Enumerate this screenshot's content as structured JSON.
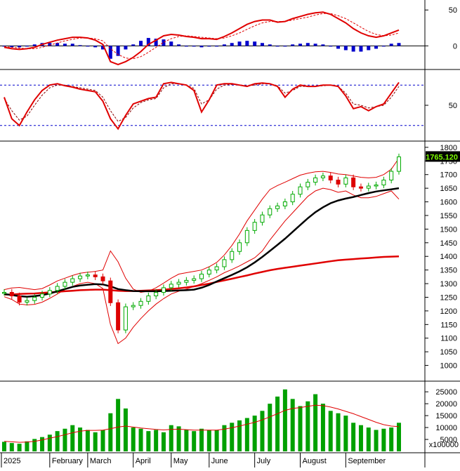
{
  "chart_data": {
    "type": "stock-dashboard",
    "months": [
      "2025",
      "February",
      "March",
      "April",
      "May",
      "June",
      "July",
      "August",
      "September"
    ],
    "macd_panel": {
      "type": "line+bar",
      "y_ticks": [
        "50",
        "0"
      ],
      "ylim": [
        -30,
        60
      ],
      "colors": {
        "macd": "#e00000",
        "signal": "#e00000",
        "histogram": "#0000cc"
      },
      "macd": [
        -2,
        -4,
        -5,
        -4,
        -2,
        2,
        5,
        8,
        10,
        12,
        12,
        11,
        8,
        2,
        -22,
        -26,
        -22,
        -16,
        -8,
        2,
        8,
        14,
        16,
        15,
        13,
        12,
        10,
        10,
        9,
        13,
        18,
        24,
        30,
        34,
        36,
        36,
        33,
        34,
        38,
        41,
        44,
        46,
        47,
        44,
        38,
        32,
        24,
        18,
        14,
        12,
        14,
        18,
        22
      ],
      "signal": [
        -1,
        -2,
        -3,
        -4,
        -4,
        -2,
        1,
        4,
        7,
        9,
        11,
        11,
        10,
        7,
        -4,
        -12,
        -17,
        -18,
        -15,
        -9,
        -2,
        5,
        10,
        13,
        14,
        13,
        12,
        11,
        10,
        11,
        14,
        18,
        23,
        28,
        32,
        34,
        34,
        34,
        36,
        38,
        40,
        43,
        45,
        45,
        42,
        38,
        32,
        26,
        20,
        16,
        14,
        15,
        18
      ],
      "histogram": [
        -1,
        -2,
        -2,
        0,
        2,
        4,
        4,
        4,
        3,
        3,
        1,
        0,
        -2,
        -5,
        -18,
        -14,
        -5,
        2,
        7,
        11,
        10,
        9,
        6,
        2,
        -1,
        -1,
        -2,
        -1,
        -1,
        2,
        4,
        6,
        7,
        6,
        4,
        2,
        -1,
        0,
        2,
        3,
        4,
        3,
        2,
        -1,
        -4,
        -6,
        -8,
        -8,
        -6,
        -4,
        0,
        3,
        4
      ]
    },
    "rsi_panel": {
      "type": "line",
      "y_ticks": [
        "50"
      ],
      "ylim": [
        0,
        100
      ],
      "reference_lines": [
        80,
        20
      ],
      "colors": {
        "rsi": "#e00000",
        "signal": "#880000",
        "reference": "#0000cc"
      },
      "rsi": [
        62,
        30,
        20,
        40,
        58,
        72,
        80,
        82,
        79,
        77,
        74,
        72,
        70,
        56,
        30,
        15,
        35,
        52,
        56,
        60,
        62,
        82,
        84,
        82,
        80,
        72,
        40,
        58,
        80,
        82,
        82,
        80,
        78,
        82,
        83,
        82,
        78,
        62,
        74,
        80,
        78,
        78,
        80,
        80,
        78,
        64,
        45,
        48,
        42,
        48,
        52,
        68,
        84
      ],
      "signal": [
        60,
        42,
        28,
        34,
        50,
        65,
        76,
        80,
        80,
        78,
        76,
        74,
        72,
        62,
        42,
        26,
        32,
        46,
        54,
        58,
        60,
        76,
        82,
        82,
        80,
        75,
        52,
        58,
        74,
        80,
        81,
        80,
        79,
        80,
        82,
        82,
        79,
        68,
        72,
        78,
        78,
        78,
        79,
        80,
        78,
        68,
        52,
        50,
        46,
        48,
        50,
        62,
        78
      ]
    },
    "price_panel": {
      "type": "candlestick",
      "y_ticks": [
        "1800",
        "1750",
        "1700",
        "1650",
        "1600",
        "1550",
        "1500",
        "1450",
        "1400",
        "1350",
        "1300",
        "1250",
        "1200",
        "1150",
        "1100",
        "1050",
        "1000"
      ],
      "ylim": [
        950,
        1810
      ],
      "last_price": "1765.120",
      "colors": {
        "up": "#00aa00",
        "down": "#dd0000",
        "bollinger": "#e00000",
        "ma_black": "#000000",
        "ma_red": "#e00000",
        "tag_bg": "#000000"
      },
      "close": [
        1268,
        1255,
        1232,
        1238,
        1250,
        1262,
        1275,
        1290,
        1305,
        1318,
        1328,
        1332,
        1325,
        1310,
        1230,
        1130,
        1215,
        1220,
        1235,
        1255,
        1268,
        1285,
        1298,
        1305,
        1312,
        1318,
        1335,
        1350,
        1362,
        1388,
        1418,
        1450,
        1495,
        1525,
        1552,
        1575,
        1585,
        1600,
        1628,
        1655,
        1672,
        1688,
        1695,
        1680,
        1665,
        1688,
        1655,
        1650,
        1658,
        1662,
        1680,
        1712,
        1765
      ],
      "bb_upper": [
        1278,
        1284,
        1286,
        1282,
        1278,
        1282,
        1295,
        1310,
        1320,
        1330,
        1338,
        1342,
        1345,
        1350,
        1420,
        1380,
        1320,
        1280,
        1268,
        1272,
        1285,
        1302,
        1320,
        1335,
        1340,
        1345,
        1350,
        1362,
        1378,
        1405,
        1440,
        1482,
        1530,
        1570,
        1610,
        1645,
        1660,
        1672,
        1685,
        1698,
        1705,
        1710,
        1712,
        1708,
        1702,
        1700,
        1695,
        1690,
        1688,
        1690,
        1700,
        1720,
        1760
      ],
      "bb_lower": [
        1252,
        1242,
        1225,
        1222,
        1224,
        1232,
        1246,
        1262,
        1278,
        1290,
        1300,
        1305,
        1300,
        1282,
        1150,
        1080,
        1100,
        1140,
        1172,
        1200,
        1225,
        1245,
        1262,
        1272,
        1280,
        1290,
        1300,
        1312,
        1325,
        1340,
        1352,
        1365,
        1380,
        1395,
        1420,
        1460,
        1495,
        1530,
        1560,
        1590,
        1620,
        1640,
        1650,
        1645,
        1635,
        1640,
        1625,
        1615,
        1615,
        1620,
        1630,
        1640,
        1610
      ],
      "ma_black": [
        1262,
        1258,
        1254,
        1252,
        1254,
        1258,
        1264,
        1272,
        1280,
        1288,
        1293,
        1296,
        1298,
        1297,
        1290,
        1280,
        1276,
        1273,
        1272,
        1272,
        1272,
        1273,
        1274,
        1275,
        1276,
        1278,
        1285,
        1295,
        1308,
        1320,
        1332,
        1345,
        1360,
        1378,
        1398,
        1420,
        1442,
        1465,
        1490,
        1515,
        1540,
        1562,
        1580,
        1595,
        1605,
        1612,
        1618,
        1625,
        1632,
        1638,
        1642,
        1646,
        1650
      ],
      "ma_red": [
        1260,
        1260,
        1262,
        1263,
        1264,
        1266,
        1268,
        1270,
        1272,
        1274,
        1276,
        1277,
        1278,
        1278,
        1276,
        1274,
        1273,
        1273,
        1274,
        1275,
        1276,
        1278,
        1280,
        1283,
        1286,
        1290,
        1295,
        1300,
        1306,
        1312,
        1318,
        1324,
        1330,
        1337,
        1343,
        1349,
        1354,
        1358,
        1362,
        1366,
        1370,
        1374,
        1378,
        1382,
        1386,
        1388,
        1390,
        1392,
        1394,
        1396,
        1398,
        1399,
        1400
      ]
    },
    "volume_panel": {
      "type": "bar",
      "y_ticks": [
        "25000",
        "20000",
        "15000",
        "10000",
        "5000"
      ],
      "unit_label": "x100000",
      "ylim": [
        0,
        28000
      ],
      "colors": {
        "bars": "#00a000",
        "ma": "#e00000"
      },
      "volume": [
        4000,
        3500,
        3200,
        4200,
        5200,
        6000,
        7000,
        8500,
        9500,
        11000,
        10000,
        9000,
        8000,
        9000,
        16000,
        22000,
        18000,
        10000,
        9500,
        8500,
        9000,
        8000,
        11000,
        10500,
        9000,
        8500,
        9500,
        9000,
        9000,
        11000,
        12000,
        13000,
        14000,
        15000,
        17000,
        20000,
        23000,
        26000,
        22000,
        19000,
        21000,
        24000,
        20000,
        17000,
        16000,
        15000,
        12000,
        11000,
        10000,
        9000,
        9500,
        10000,
        12000
      ],
      "volume_ma": [
        4200,
        4000,
        3800,
        3900,
        4200,
        4800,
        5500,
        6200,
        7000,
        7800,
        8500,
        8800,
        8800,
        8900,
        9500,
        10200,
        10600,
        10200,
        9800,
        9500,
        9200,
        9000,
        9200,
        9300,
        9100,
        8900,
        8900,
        8900,
        8900,
        9300,
        9900,
        10600,
        11400,
        12200,
        13200,
        14500,
        15800,
        17200,
        18000,
        18400,
        18900,
        19400,
        19200,
        18600,
        17800,
        16800,
        15800,
        14600,
        13400,
        12200,
        11200,
        10600,
        10400
      ]
    }
  }
}
